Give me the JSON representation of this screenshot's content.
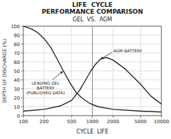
{
  "chart_data": {
    "type": "line",
    "title": "LIFE  CYCLE\nPERFORMANCE COMPARISON",
    "subtitle": "GEL  VS.  AGM",
    "x_label": "CYCLE  LIFE",
    "y_label": "DEPTH OF DISCHARGE (%)",
    "log": "x",
    "grid": true,
    "xlim": [
      100,
      10000
    ],
    "ylim": [
      0,
      100
    ],
    "xticks": [
      100,
      200,
      500,
      1000,
      2000,
      5000,
      10000
    ],
    "yticks": [
      0,
      10,
      20,
      30,
      40,
      50,
      60,
      70,
      80,
      90,
      100
    ],
    "series": [
      {
        "name": "LEADING GEL\nBATTERY\n(PUBLISHED DATA)",
        "color": "#222222",
        "x": [
          100,
          130,
          160,
          200,
          250,
          300,
          380,
          470,
          580,
          700,
          900,
          1200,
          2000,
          5000,
          10000
        ],
        "values": [
          100,
          97,
          93,
          86,
          76,
          65,
          50,
          37,
          26,
          20,
          14,
          10,
          7,
          5,
          4
        ]
      },
      {
        "name": "AGM BATTERY",
        "color": "#222222",
        "x": [
          100,
          200,
          350,
          500,
          650,
          800,
          950,
          1100,
          1300,
          1600,
          2000,
          3000,
          5000,
          7000,
          10000
        ],
        "values": [
          5,
          7,
          11,
          17,
          28,
          40,
          50,
          57,
          63,
          65,
          62,
          52,
          35,
          22,
          13
        ]
      }
    ],
    "reference_lines": [
      {
        "x": 1000,
        "color": "#888888"
      }
    ]
  }
}
